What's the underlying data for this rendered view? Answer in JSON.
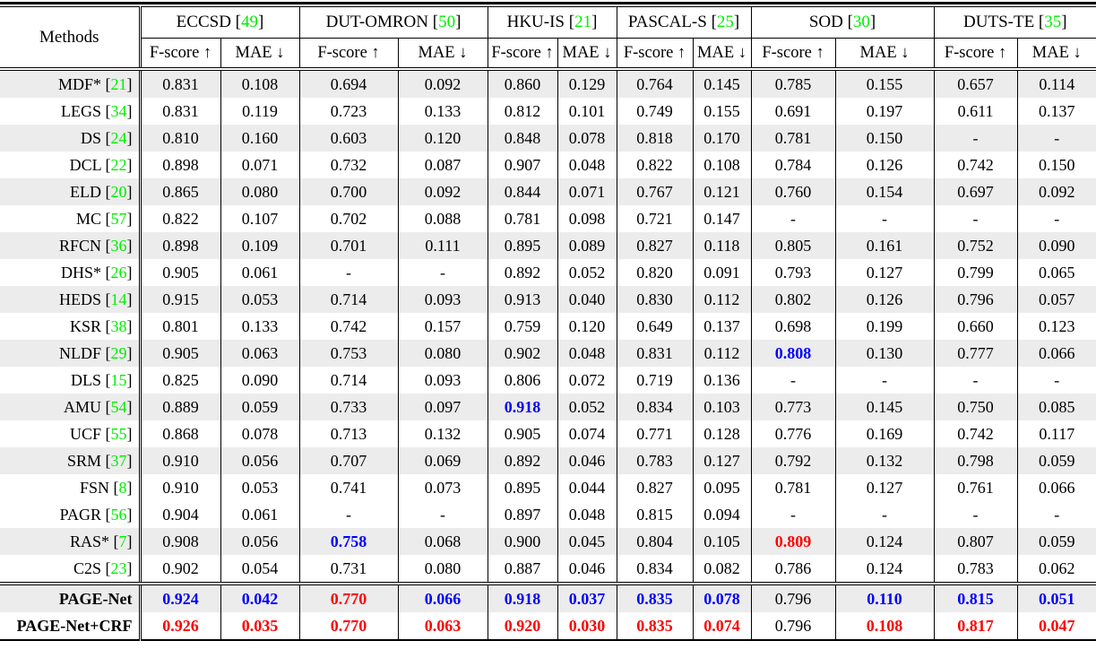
{
  "table": {
    "header": {
      "methods_label": "Methods",
      "fscore_header": "F-score ↑",
      "mae_header": "MAE ↓",
      "datasets": [
        {
          "name": "ECCSD",
          "cite": "49"
        },
        {
          "name": "DUT-OMRON",
          "cite": "50"
        },
        {
          "name": "HKU-IS",
          "cite": "21"
        },
        {
          "name": "PASCAL-S",
          "cite": "25"
        },
        {
          "name": "SOD",
          "cite": "30"
        },
        {
          "name": "DUTS-TE",
          "cite": "35"
        }
      ]
    },
    "colors": {
      "citation_green": "#00ee00",
      "best_red": "#ff0000",
      "second_best_blue": "#0000ff",
      "row_shade": "#ececec"
    },
    "rows": [
      {
        "method": "MDF*",
        "cite": "21",
        "shaded": true,
        "values": [
          "0.831",
          "0.108",
          "0.694",
          "0.092",
          "0.860",
          "0.129",
          "0.764",
          "0.145",
          "0.785",
          "0.155",
          "0.657",
          "0.114"
        ]
      },
      {
        "method": "LEGS",
        "cite": "34",
        "shaded": false,
        "values": [
          "0.831",
          "0.119",
          "0.723",
          "0.133",
          "0.812",
          "0.101",
          "0.749",
          "0.155",
          "0.691",
          "0.197",
          "0.611",
          "0.137"
        ]
      },
      {
        "method": "DS",
        "cite": "24",
        "shaded": true,
        "values": [
          "0.810",
          "0.160",
          "0.603",
          "0.120",
          "0.848",
          "0.078",
          "0.818",
          "0.170",
          "0.781",
          "0.150",
          "-",
          "-"
        ]
      },
      {
        "method": "DCL",
        "cite": "22",
        "shaded": false,
        "values": [
          "0.898",
          "0.071",
          "0.732",
          "0.087",
          "0.907",
          "0.048",
          "0.822",
          "0.108",
          "0.784",
          "0.126",
          "0.742",
          "0.150"
        ]
      },
      {
        "method": "ELD",
        "cite": "20",
        "shaded": true,
        "values": [
          "0.865",
          "0.080",
          "0.700",
          "0.092",
          "0.844",
          "0.071",
          "0.767",
          "0.121",
          "0.760",
          "0.154",
          "0.697",
          "0.092"
        ]
      },
      {
        "method": "MC",
        "cite": "57",
        "shaded": false,
        "values": [
          "0.822",
          "0.107",
          "0.702",
          "0.088",
          "0.781",
          "0.098",
          "0.721",
          "0.147",
          "-",
          "-",
          "-",
          "-"
        ]
      },
      {
        "method": "RFCN",
        "cite": "36",
        "shaded": true,
        "values": [
          "0.898",
          "0.109",
          "0.701",
          "0.111",
          "0.895",
          "0.089",
          "0.827",
          "0.118",
          "0.805",
          "0.161",
          "0.752",
          "0.090"
        ]
      },
      {
        "method": "DHS*",
        "cite": "26",
        "shaded": false,
        "values": [
          "0.905",
          "0.061",
          "-",
          "-",
          "0.892",
          "0.052",
          "0.820",
          "0.091",
          "0.793",
          "0.127",
          "0.799",
          "0.065"
        ]
      },
      {
        "method": "HEDS",
        "cite": "14",
        "shaded": true,
        "values": [
          "0.915",
          "0.053",
          "0.714",
          "0.093",
          "0.913",
          "0.040",
          "0.830",
          "0.112",
          "0.802",
          "0.126",
          "0.796",
          "0.057"
        ]
      },
      {
        "method": "KSR",
        "cite": "38",
        "shaded": false,
        "values": [
          "0.801",
          "0.133",
          "0.742",
          "0.157",
          "0.759",
          "0.120",
          "0.649",
          "0.137",
          "0.698",
          "0.199",
          "0.660",
          "0.123"
        ]
      },
      {
        "method": "NLDF",
        "cite": "29",
        "shaded": true,
        "values": [
          "0.905",
          "0.063",
          "0.753",
          "0.080",
          "0.902",
          "0.048",
          "0.831",
          "0.112",
          "0.808",
          "0.130",
          "0.777",
          "0.066"
        ],
        "marks": {
          "8": "blue"
        }
      },
      {
        "method": "DLS",
        "cite": "15",
        "shaded": false,
        "values": [
          "0.825",
          "0.090",
          "0.714",
          "0.093",
          "0.806",
          "0.072",
          "0.719",
          "0.136",
          "-",
          "-",
          "-",
          "-"
        ]
      },
      {
        "method": "AMU",
        "cite": "54",
        "shaded": true,
        "values": [
          "0.889",
          "0.059",
          "0.733",
          "0.097",
          "0.918",
          "0.052",
          "0.834",
          "0.103",
          "0.773",
          "0.145",
          "0.750",
          "0.085"
        ],
        "marks": {
          "4": "blue"
        }
      },
      {
        "method": "UCF",
        "cite": "55",
        "shaded": false,
        "values": [
          "0.868",
          "0.078",
          "0.713",
          "0.132",
          "0.905",
          "0.074",
          "0.771",
          "0.128",
          "0.776",
          "0.169",
          "0.742",
          "0.117"
        ]
      },
      {
        "method": "SRM",
        "cite": "37",
        "shaded": true,
        "values": [
          "0.910",
          "0.056",
          "0.707",
          "0.069",
          "0.892",
          "0.046",
          "0.783",
          "0.127",
          "0.792",
          "0.132",
          "0.798",
          "0.059"
        ]
      },
      {
        "method": "FSN",
        "cite": "8",
        "shaded": false,
        "values": [
          "0.910",
          "0.053",
          "0.741",
          "0.073",
          "0.895",
          "0.044",
          "0.827",
          "0.095",
          "0.781",
          "0.127",
          "0.761",
          "0.066"
        ]
      },
      {
        "method": "PAGR",
        "cite": "56",
        "shaded": false,
        "values": [
          "0.904",
          "0.061",
          "-",
          "-",
          "0.897",
          "0.048",
          "0.815",
          "0.094",
          "-",
          "-",
          "-",
          "-"
        ]
      },
      {
        "method": "RAS*",
        "cite": "7",
        "shaded": true,
        "values": [
          "0.908",
          "0.056",
          "0.758",
          "0.068",
          "0.900",
          "0.045",
          "0.804",
          "0.105",
          "0.809",
          "0.124",
          "0.807",
          "0.059"
        ],
        "marks": {
          "2": "blue",
          "8": "red"
        }
      },
      {
        "method": "C2S",
        "cite": "23",
        "shaded": false,
        "values": [
          "0.902",
          "0.054",
          "0.731",
          "0.080",
          "0.887",
          "0.046",
          "0.834",
          "0.082",
          "0.786",
          "0.124",
          "0.783",
          "0.062"
        ]
      }
    ],
    "final_rows": [
      {
        "method": "PAGE-Net",
        "shaded": true,
        "values": [
          "0.924",
          "0.042",
          "0.770",
          "0.066",
          "0.918",
          "0.037",
          "0.835",
          "0.078",
          "0.796",
          "0.110",
          "0.815",
          "0.051"
        ],
        "marks": {
          "0": "blue",
          "1": "blue",
          "2": "red",
          "3": "blue",
          "4": "blue",
          "5": "blue",
          "6": "blue",
          "7": "blue",
          "9": "blue",
          "10": "blue",
          "11": "blue"
        }
      },
      {
        "method": "PAGE-Net+CRF",
        "shaded": false,
        "values": [
          "0.926",
          "0.035",
          "0.770",
          "0.063",
          "0.920",
          "0.030",
          "0.835",
          "0.074",
          "0.796",
          "0.108",
          "0.817",
          "0.047"
        ],
        "marks": {
          "0": "red",
          "1": "red",
          "2": "red",
          "3": "red",
          "4": "red",
          "5": "red",
          "6": "red",
          "7": "red",
          "9": "red",
          "10": "red",
          "11": "red"
        }
      }
    ]
  }
}
